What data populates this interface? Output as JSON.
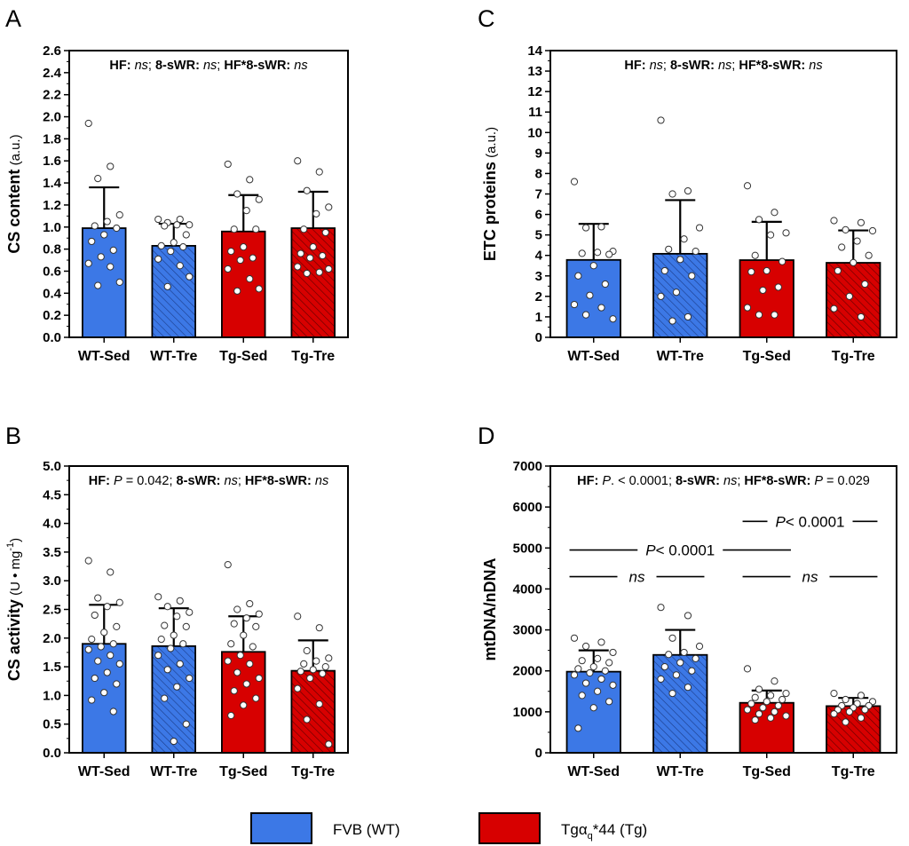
{
  "colors": {
    "wt": "#3c78e6",
    "tg": "#d70000",
    "axis": "#000000",
    "dot_fill": "#ffffff"
  },
  "legend": {
    "wt_label": "FVB (WT)",
    "tg_label": "Tgα",
    "tg_subscript": "q",
    "tg_suffix": "*44 (Tg)"
  },
  "chart_data": [
    {
      "type": "bar",
      "panel_letter": "A",
      "title": "",
      "ylabel_main": "CS content",
      "ylabel_unit": "(a.u.)",
      "ylim": [
        0,
        2.6
      ],
      "ytick_step": 0.2,
      "tick_decimals": 1,
      "categories": [
        "WT-Sed",
        "WT-Tre",
        "Tg-Sed",
        "Tg-Tre"
      ],
      "values": [
        0.99,
        0.83,
        0.96,
        0.99
      ],
      "errors": [
        0.37,
        0.2,
        0.33,
        0.33
      ],
      "groups": [
        "wt",
        "wt",
        "tg",
        "tg"
      ],
      "hatched": [
        false,
        true,
        false,
        true
      ],
      "stats_text": [
        {
          "t": "HF:",
          "b": true
        },
        {
          "t": " "
        },
        {
          "t": "ns",
          "i": true
        },
        {
          "t": "; "
        },
        {
          "t": "8-sWR:",
          "b": true
        },
        {
          "t": " "
        },
        {
          "t": "ns",
          "i": true
        },
        {
          "t": "; "
        },
        {
          "t": "HF*8-sWR:",
          "b": true
        },
        {
          "t": " "
        },
        {
          "t": "ns",
          "i": true
        }
      ],
      "points": [
        [
          1.94,
          1.55,
          1.44,
          1.11,
          1.05,
          1.01,
          0.99,
          0.93,
          0.87,
          0.79,
          0.73,
          0.67,
          0.64,
          0.47,
          0.5
        ],
        [
          1.07,
          1.07,
          1.04,
          1.02,
          1.02,
          1.01,
          0.93,
          0.86,
          0.83,
          0.82,
          0.78,
          0.71,
          0.65,
          0.46,
          0.55
        ],
        [
          1.57,
          1.43,
          1.3,
          1.25,
          1.15,
          0.98,
          0.98,
          0.82,
          0.78,
          0.72,
          0.7,
          0.62,
          0.53,
          0.42,
          0.44
        ],
        [
          1.6,
          1.5,
          1.33,
          1.18,
          1.12,
          0.98,
          0.95,
          0.82,
          0.76,
          0.74,
          0.72,
          0.64,
          0.59,
          0.58,
          0.62
        ]
      ]
    },
    {
      "type": "bar",
      "panel_letter": "B",
      "title": "",
      "ylabel_main": "CS activity",
      "ylabel_unit": "(U • mg",
      "ylabel_sup": "-1",
      "ylabel_close": ")",
      "ylim": [
        0,
        5.0
      ],
      "ytick_step": 0.5,
      "tick_decimals": 1,
      "categories": [
        "WT-Sed",
        "WT-Tre",
        "Tg-Sed",
        "Tg-Tre"
      ],
      "values": [
        1.9,
        1.86,
        1.76,
        1.43
      ],
      "errors": [
        0.68,
        0.66,
        0.62,
        0.53
      ],
      "groups": [
        "wt",
        "wt",
        "tg",
        "tg"
      ],
      "hatched": [
        false,
        true,
        false,
        true
      ],
      "stats_text": [
        {
          "t": "HF:",
          "b": true
        },
        {
          "t": " "
        },
        {
          "t": "P",
          "i": true
        },
        {
          "t": " = 0.042; "
        },
        {
          "t": "8-sWR:",
          "b": true
        },
        {
          "t": " "
        },
        {
          "t": "ns",
          "i": true
        },
        {
          "t": "; "
        },
        {
          "t": "HF*8-sWR:",
          "b": true
        },
        {
          "t": " "
        },
        {
          "t": "ns",
          "i": true
        }
      ],
      "points": [
        [
          3.35,
          3.15,
          2.7,
          2.62,
          2.55,
          2.4,
          2.2,
          2.1,
          1.98,
          1.9,
          1.85,
          1.8,
          1.7,
          1.6,
          1.55,
          1.4,
          1.3,
          1.2,
          1.05,
          0.92,
          0.72
        ],
        [
          2.72,
          2.65,
          2.55,
          2.45,
          2.38,
          2.22,
          2.2,
          2.05,
          1.98,
          1.9,
          1.82,
          1.7,
          1.55,
          1.45,
          1.3,
          1.15,
          0.95,
          0.5,
          0.2
        ],
        [
          3.28,
          2.6,
          2.5,
          2.42,
          2.35,
          2.25,
          2.2,
          2.05,
          1.9,
          1.85,
          1.7,
          1.6,
          1.55,
          1.4,
          1.3,
          1.2,
          1.08,
          0.95,
          0.83,
          0.65
        ],
        [
          2.38,
          2.18,
          1.78,
          1.65,
          1.6,
          1.55,
          1.5,
          1.45,
          1.42,
          1.38,
          1.3,
          1.12,
          0.85,
          0.58,
          0.15
        ]
      ]
    },
    {
      "type": "bar",
      "panel_letter": "C",
      "title": "",
      "ylabel_main": "ETC proteins",
      "ylabel_unit": "(a.u.)",
      "ylim": [
        0,
        14
      ],
      "ytick_step": 1,
      "tick_decimals": 0,
      "categories": [
        "WT-Sed",
        "WT-Tre",
        "Tg-Sed",
        "Tg-Tre"
      ],
      "values": [
        3.78,
        4.08,
        3.77,
        3.64
      ],
      "errors": [
        1.76,
        2.62,
        1.87,
        1.58
      ],
      "groups": [
        "wt",
        "wt",
        "tg",
        "tg"
      ],
      "hatched": [
        false,
        true,
        false,
        true
      ],
      "stats_text": [
        {
          "t": "HF:",
          "b": true
        },
        {
          "t": " "
        },
        {
          "t": "ns",
          "i": true
        },
        {
          "t": "; "
        },
        {
          "t": "8-sWR:",
          "b": true
        },
        {
          "t": " "
        },
        {
          "t": "ns",
          "i": true
        },
        {
          "t": "; "
        },
        {
          "t": "HF*8-sWR:",
          "b": true
        },
        {
          "t": " "
        },
        {
          "t": "ns",
          "i": true
        }
      ],
      "points": [
        [
          7.6,
          5.4,
          5.35,
          4.2,
          4.15,
          4.1,
          4.05,
          3.5,
          3.0,
          2.6,
          2.05,
          1.6,
          1.45,
          1.1,
          0.9
        ],
        [
          10.6,
          7.15,
          7.0,
          5.35,
          4.8,
          4.3,
          4.2,
          3.8,
          3.25,
          3.0,
          2.2,
          2.0,
          1.0,
          0.8
        ],
        [
          7.4,
          6.1,
          5.75,
          5.1,
          5.0,
          4.0,
          3.7,
          3.25,
          3.2,
          2.45,
          2.3,
          1.45,
          1.1,
          1.1
        ],
        [
          5.7,
          5.6,
          5.25,
          5.2,
          4.7,
          4.4,
          4.0,
          3.65,
          3.25,
          2.6,
          2.0,
          1.4,
          1.0
        ]
      ]
    },
    {
      "type": "bar",
      "panel_letter": "D",
      "title": "",
      "ylabel_main": "mtDNA/nDNA",
      "ylabel_unit": "",
      "ylim": [
        0,
        7000
      ],
      "ytick_step": 1000,
      "tick_decimals": 0,
      "categories": [
        "WT-Sed",
        "WT-Tre",
        "Tg-Sed",
        "Tg-Tre"
      ],
      "values": [
        1980,
        2390,
        1220,
        1140
      ],
      "errors": [
        520,
        610,
        300,
        200
      ],
      "groups": [
        "wt",
        "wt",
        "tg",
        "tg"
      ],
      "hatched": [
        false,
        true,
        false,
        true
      ],
      "stats_text": [
        {
          "t": "HF:",
          "b": true
        },
        {
          "t": " "
        },
        {
          "t": "P",
          "i": true
        },
        {
          "t": ". < 0.0001; "
        },
        {
          "t": "8-sWR:",
          "b": true
        },
        {
          "t": " "
        },
        {
          "t": "ns",
          "i": true
        },
        {
          "t": "; "
        },
        {
          "t": "HF*8-sWR:",
          "b": true
        },
        {
          "t": " "
        },
        {
          "t": "P",
          "i": true
        },
        {
          "t": " = 0.029"
        }
      ],
      "comparisons": [
        {
          "from": 2,
          "to": 3,
          "y": 5650,
          "segs": [
            {
              "t": "P",
              "i": true
            },
            {
              "t": "< 0.0001"
            }
          ]
        },
        {
          "from": 0,
          "to": 2,
          "y": 4950,
          "segs": [
            {
              "t": "P",
              "i": true
            },
            {
              "t": "< 0.0001"
            }
          ]
        },
        {
          "from": 0,
          "to": 1,
          "y": 4300,
          "segs": [
            {
              "t": "ns",
              "i": true
            }
          ]
        },
        {
          "from": 2,
          "to": 3,
          "y": 4300,
          "segs": [
            {
              "t": "ns",
              "i": true
            }
          ]
        }
      ],
      "points": [
        [
          2800,
          2700,
          2600,
          2450,
          2300,
          2250,
          2200,
          2100,
          2050,
          2000,
          1950,
          1900,
          1800,
          1700,
          1650,
          1500,
          1400,
          1250,
          1100,
          600
        ],
        [
          3550,
          3350,
          2800,
          2600,
          2450,
          2400,
          2300,
          2200,
          2100,
          2000,
          1900,
          1800,
          1600,
          1450
        ],
        [
          2050,
          1750,
          1550,
          1450,
          1400,
          1350,
          1300,
          1250,
          1200,
          1150,
          1100,
          1050,
          1000,
          950,
          900,
          850,
          800
        ],
        [
          1450,
          1400,
          1300,
          1250,
          1200,
          1150,
          1150,
          1100,
          1050,
          1050,
          1000,
          950,
          850,
          750
        ]
      ]
    }
  ]
}
